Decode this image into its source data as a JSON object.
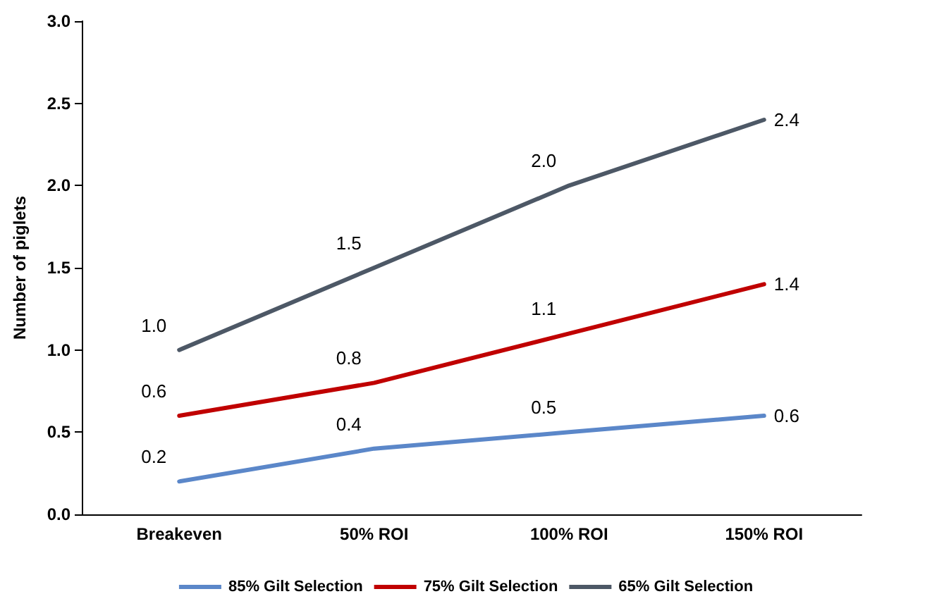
{
  "chart_data": {
    "type": "line",
    "ylabel": "Number of piglets",
    "categories": [
      "Breakeven",
      "50% ROI",
      "100% ROI",
      "150% ROI"
    ],
    "series": [
      {
        "name": "85% Gilt Selection",
        "color": "#5b87c9",
        "values": [
          0.2,
          0.4,
          0.5,
          0.6
        ],
        "value_labels": [
          "0.2",
          "0.4",
          "0.5",
          "0.6"
        ]
      },
      {
        "name": "75% Gilt Selection",
        "color": "#c00000",
        "values": [
          0.6,
          0.8,
          1.1,
          1.4
        ],
        "value_labels": [
          "0.6",
          "0.8",
          "1.1",
          "1.4"
        ]
      },
      {
        "name": "65% Gilt Selection",
        "color": "#4d5866",
        "values": [
          1.0,
          1.5,
          2.0,
          2.4
        ],
        "value_labels": [
          "1.0",
          "1.5",
          "2.0",
          "2.4"
        ]
      }
    ],
    "ylim": [
      0,
      3
    ],
    "yticks": [
      {
        "value": 0,
        "label": "0.0"
      },
      {
        "value": 0.5,
        "label": "0.5"
      },
      {
        "value": 1,
        "label": "1.0"
      },
      {
        "value": 1.5,
        "label": "1.5"
      },
      {
        "value": 2,
        "label": "2.0"
      },
      {
        "value": 2.5,
        "label": "2.5"
      },
      {
        "value": 3,
        "label": "3.0"
      }
    ],
    "grid": false,
    "legend": "bottom",
    "marker": "none",
    "line_style": "solid"
  }
}
